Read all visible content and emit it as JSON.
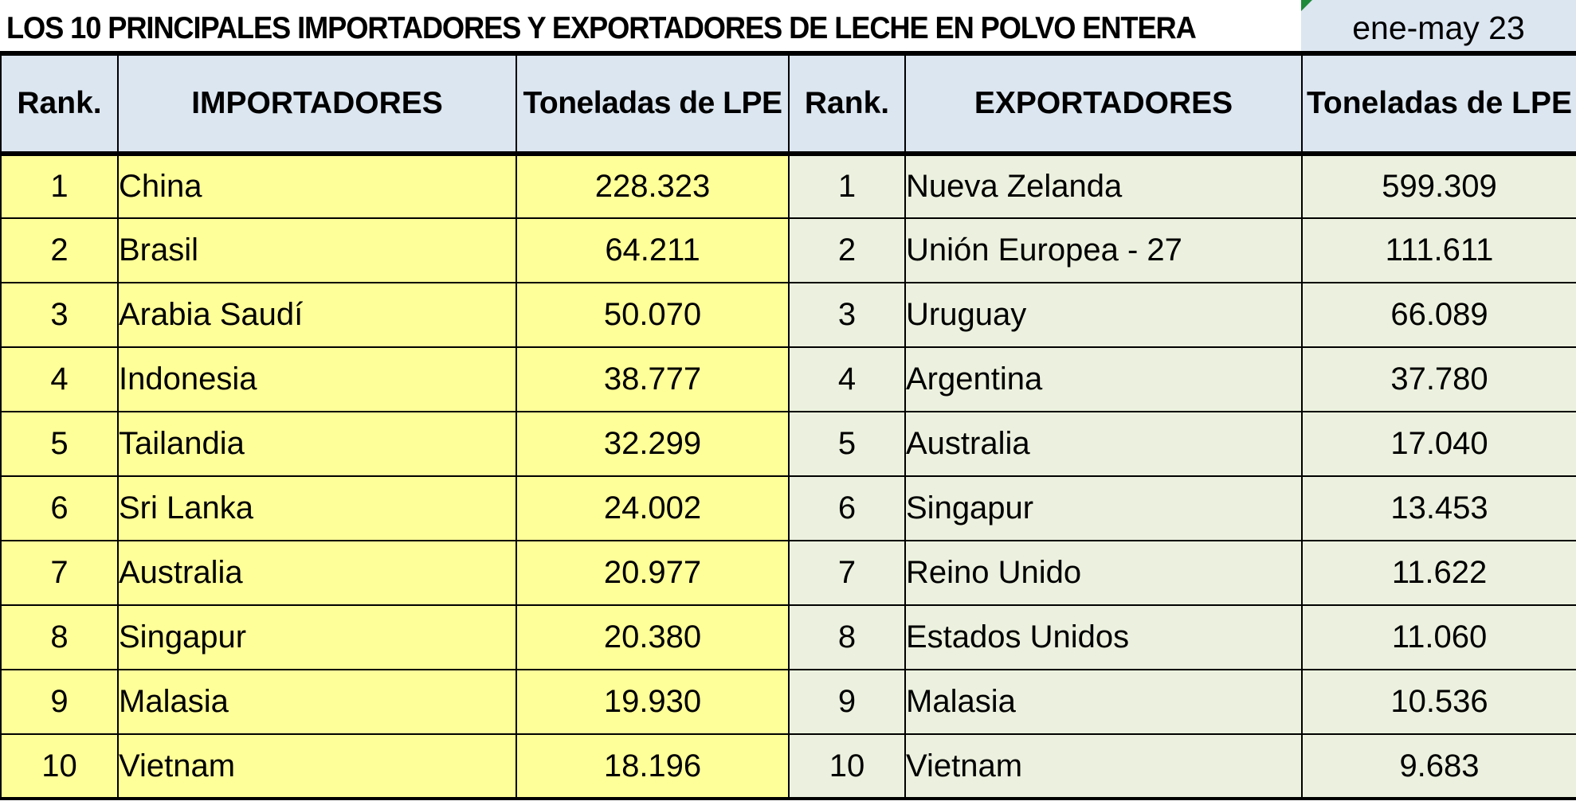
{
  "title": "LOS 10 PRINCIPALES IMPORTADORES Y EXPORTADORES DE LECHE EN POLVO ENTERA",
  "period": "ene-may 23",
  "colors": {
    "header_bg": "#dce6f1",
    "importers_bg": "#ffff99",
    "exporters_bg": "#ebf1de",
    "corner_marker": "#1e8a3a"
  },
  "headers": {
    "rank_left": "Rank.",
    "importers": "IMPORTADORES",
    "tonnes_left": "Toneladas  de LPE",
    "rank_right": "Rank.",
    "exporters": "EXPORTADORES",
    "tonnes_right": "Toneladas de LPE"
  },
  "importers": [
    {
      "rank": "1",
      "country": "China",
      "tonnes": "228.323"
    },
    {
      "rank": "2",
      "country": "Brasil",
      "tonnes": "64.211"
    },
    {
      "rank": "3",
      "country": "Arabia Saudí",
      "tonnes": "50.070"
    },
    {
      "rank": "4",
      "country": "Indonesia",
      "tonnes": "38.777"
    },
    {
      "rank": "5",
      "country": "Tailandia",
      "tonnes": "32.299"
    },
    {
      "rank": "6",
      "country": "Sri Lanka",
      "tonnes": "24.002"
    },
    {
      "rank": "7",
      "country": "Australia",
      "tonnes": "20.977"
    },
    {
      "rank": "8",
      "country": "Singapur",
      "tonnes": "20.380"
    },
    {
      "rank": "9",
      "country": "Malasia",
      "tonnes": "19.930"
    },
    {
      "rank": "10",
      "country": "Vietnam",
      "tonnes": "18.196"
    }
  ],
  "exporters": [
    {
      "rank": "1",
      "country": "Nueva Zelanda",
      "tonnes": "599.309"
    },
    {
      "rank": "2",
      "country": "Unión Europea - 27",
      "tonnes": "111.611"
    },
    {
      "rank": "3",
      "country": "Uruguay",
      "tonnes": "66.089"
    },
    {
      "rank": "4",
      "country": "Argentina",
      "tonnes": "37.780"
    },
    {
      "rank": "5",
      "country": "Australia",
      "tonnes": "17.040"
    },
    {
      "rank": "6",
      "country": "Singapur",
      "tonnes": "13.453"
    },
    {
      "rank": "7",
      "country": "Reino Unido",
      "tonnes": "11.622"
    },
    {
      "rank": "8",
      "country": "Estados Unidos",
      "tonnes": "11.060"
    },
    {
      "rank": "9",
      "country": "Malasia",
      "tonnes": "10.536"
    },
    {
      "rank": "10",
      "country": "Vietnam",
      "tonnes": "9.683"
    }
  ]
}
